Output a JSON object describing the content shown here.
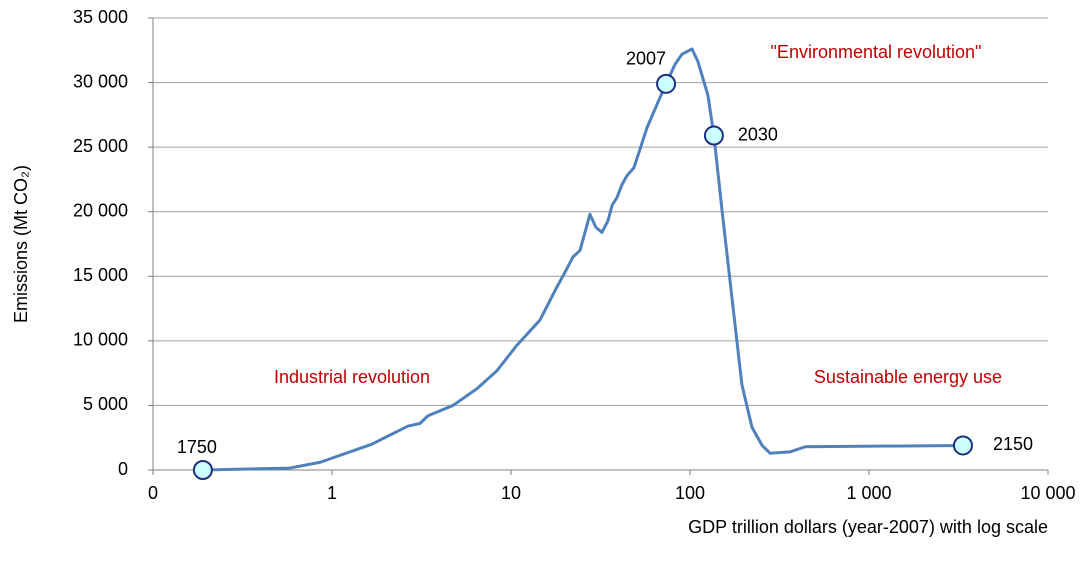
{
  "chart_data": {
    "type": "line",
    "y_axis_title": "Emissions (Mt CO₂)",
    "x_axis_title": "GDP trillion dollars (year-2007) with log scale",
    "x_log": true,
    "grid": true,
    "xlim": [
      0.1,
      10000
    ],
    "xticks": [
      {
        "value": 0.1,
        "label": "0"
      },
      1,
      10,
      100,
      {
        "value": 1000,
        "label": "1 000"
      },
      {
        "value": 10000,
        "label": "10 000"
      }
    ],
    "ylim": [
      0,
      35000
    ],
    "yticks": [
      0,
      {
        "value": 5000,
        "label": "5 000"
      },
      {
        "value": 10000,
        "label": "10 000"
      },
      {
        "value": 15000,
        "label": "15 000"
      },
      {
        "value": 20000,
        "label": "20 000"
      },
      {
        "value": 25000,
        "label": "25 000"
      },
      {
        "value": 30000,
        "label": "30 000"
      },
      {
        "value": 35000,
        "label": "35 000"
      }
    ],
    "series": [
      {
        "color": "#4f81bd",
        "x": [
          0.19,
          0.58,
          0.86,
          1.67,
          2.66,
          3.1,
          3.44,
          4.74,
          6.46,
          8.36,
          10.7,
          14.5,
          18.1,
          20,
          22.2,
          24.3,
          25.9,
          27.6,
          29.8,
          32.2,
          34.8,
          36.7,
          39.1,
          41.7,
          44.5,
          48.6,
          51.9,
          57.5,
          65.4,
          73.5,
          82.4,
          90.2,
          102.6,
          110.9,
          126,
          136,
          151,
          172,
          195,
          222,
          253,
          280,
          362,
          440,
          3350
        ],
        "values": [
          0,
          150,
          600,
          2000,
          3400,
          3600,
          4200,
          5000,
          6300,
          7700,
          9600,
          11600,
          14200,
          15300,
          16500,
          17000,
          18400,
          19800,
          18800,
          18400,
          19300,
          20500,
          21100,
          22100,
          22800,
          23400,
          24600,
          26500,
          28300,
          29900,
          31400,
          32200,
          32600,
          31600,
          29000,
          25900,
          20100,
          13200,
          6600,
          3300,
          1900,
          1300,
          1400,
          1800,
          1900
        ]
      }
    ],
    "markers": {
      "color": "#ccffff",
      "labels": [
        "1750",
        "2007",
        "2030",
        "2150"
      ],
      "x": [
        0.19,
        73.5,
        136,
        3350
      ],
      "values": [
        0,
        29900,
        25900,
        1900
      ]
    },
    "annotations": [
      "Industrial revolution",
      "\"Environmental revolution\"",
      "Sustainable energy use"
    ]
  }
}
